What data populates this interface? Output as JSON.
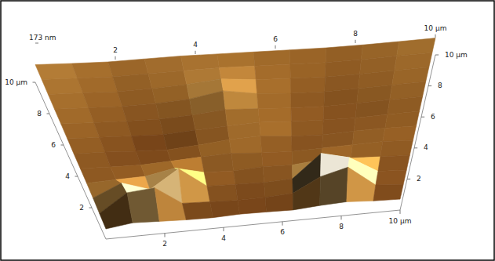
{
  "chart_data": {
    "type": "surface",
    "xlim": [
      0,
      10
    ],
    "ylim": [
      0,
      10
    ],
    "zlim": [
      0,
      173
    ],
    "xticks": [
      2,
      4,
      6,
      8,
      {
        "value": 10,
        "label": "10 µm"
      }
    ],
    "yticks": [
      2,
      4,
      6,
      8,
      {
        "value": 10,
        "label": "10 µm"
      }
    ],
    "zticks": [
      {
        "value": 173,
        "label": "173 nm"
      }
    ],
    "z": [
      [
        45,
        60,
        55,
        50,
        48,
        52,
        50,
        47,
        55,
        60,
        52,
        48
      ],
      [
        50,
        130,
        140,
        60,
        55,
        50,
        52,
        58,
        120,
        150,
        60,
        50
      ],
      [
        55,
        110,
        70,
        150,
        62,
        58,
        55,
        60,
        160,
        130,
        58,
        52
      ],
      [
        58,
        62,
        65,
        90,
        60,
        55,
        62,
        58,
        70,
        65,
        60,
        55
      ],
      [
        60,
        55,
        52,
        58,
        65,
        70,
        60,
        55,
        58,
        62,
        65,
        58
      ],
      [
        62,
        58,
        50,
        45,
        55,
        68,
        72,
        60,
        55,
        60,
        62,
        60
      ],
      [
        65,
        60,
        55,
        50,
        58,
        65,
        70,
        62,
        58,
        55,
        60,
        62
      ],
      [
        68,
        62,
        58,
        55,
        62,
        75,
        68,
        60,
        55,
        58,
        62,
        65
      ],
      [
        70,
        65,
        60,
        62,
        70,
        95,
        72,
        62,
        58,
        60,
        65,
        68
      ],
      [
        72,
        68,
        62,
        65,
        72,
        85,
        70,
        65,
        60,
        62,
        66,
        70
      ],
      [
        75,
        70,
        65,
        68,
        70,
        72,
        68,
        65,
        62,
        64,
        68,
        72
      ],
      [
        78,
        72,
        68,
        70,
        72,
        70,
        68,
        66,
        64,
        66,
        70,
        74
      ]
    ]
  }
}
